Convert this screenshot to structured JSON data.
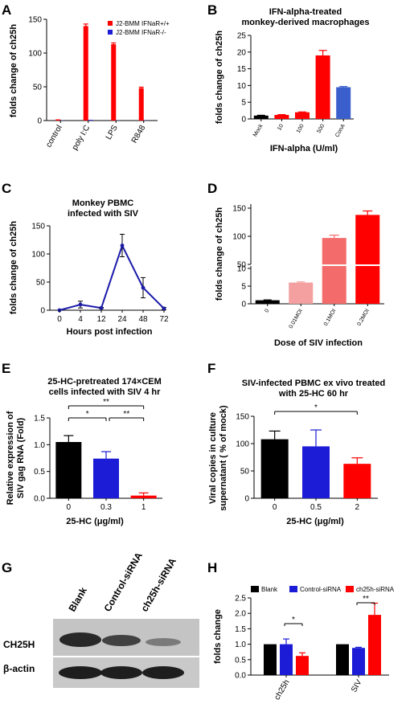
{
  "chart_data": [
    {
      "panel": "A",
      "type": "bar",
      "title": "",
      "ylabel": "folds change of ch25h",
      "xlabel": "",
      "ylim": [
        0,
        150
      ],
      "categories": [
        "control",
        "poly I:C",
        "LPS",
        "R848"
      ],
      "series": [
        {
          "name": "J2-BMM IFNaR+/+",
          "color": "#ff0000",
          "values": [
            0.5,
            140,
            113,
            48
          ],
          "errors": [
            0.5,
            3,
            2,
            1.5
          ]
        },
        {
          "name": "J2-BMM IFNaR-/-",
          "color": "#1c1cd6",
          "values": [
            0.3,
            1,
            0.3,
            0.3
          ],
          "errors": [
            0.2,
            0.3,
            0.2,
            0.2
          ]
        }
      ],
      "legend": "top-right"
    },
    {
      "panel": "B",
      "type": "bar",
      "title": "IFN-alpha-treated monkey-derived macrophages",
      "title_lines": [
        "IFN-alpha-treated",
        "monkey-derived macrophages"
      ],
      "ylabel": "folds change of ch25h",
      "xlabel": "IFN-alpha (U/ml)",
      "ylim": [
        0,
        25
      ],
      "yticks": [
        0,
        5,
        10,
        15,
        20,
        25
      ],
      "categories": [
        "Mock",
        "10",
        "100",
        "500",
        "ConA"
      ],
      "values": [
        1,
        1.2,
        2,
        19,
        9.5
      ],
      "errors": [
        0.1,
        0.1,
        0.1,
        1.5,
        0.2
      ],
      "colors": [
        "#000000",
        "#ff0000",
        "#ff0000",
        "#ff0000",
        "#3a5fcd"
      ]
    },
    {
      "panel": "C",
      "type": "line",
      "title": "Monkey PBMC infected with SIV",
      "title_lines": [
        "Monkey PBMC",
        "infected with SIV"
      ],
      "ylabel": "folds change of ch25h",
      "xlabel": "Hours post infection",
      "ylim": [
        0,
        150
      ],
      "yticks": [
        0,
        50,
        100,
        150
      ],
      "categories": [
        "0",
        "4",
        "12",
        "24",
        "48",
        "72"
      ],
      "values": [
        0,
        10,
        4,
        115,
        40,
        3
      ],
      "errors": [
        0.5,
        6,
        1,
        20,
        18,
        2
      ],
      "color": "#1c1caa"
    },
    {
      "panel": "D",
      "type": "bar",
      "title": "",
      "ylabel": "folds change of ch25h",
      "xlabel": "Dose of SIV infection",
      "y_break": true,
      "yticks_upper": [
        50,
        100,
        150
      ],
      "yticks_lower": [
        0,
        5,
        10
      ],
      "categories": [
        "0",
        "0.01MOI",
        "0.1MOI",
        "0.2MOI"
      ],
      "values": [
        1,
        6,
        97,
        138
      ],
      "errors": [
        0.1,
        0.2,
        5,
        7
      ],
      "colors": [
        "#000000",
        "#f4a0a0",
        "#f36b6b",
        "#ff0000"
      ]
    },
    {
      "panel": "E",
      "type": "bar",
      "title": "25-HC-pretreated 174×CEM cells infected with SIV 4 hr",
      "title_lines": [
        "25-HC-pretreated 174×CEM",
        "cells infected with SIV 4 hr"
      ],
      "ylabel": "Relative expression of SIV gag RNA (Fold)",
      "ylabel_lines": [
        "Relative expression of",
        "SIV gag RNA (Fold)"
      ],
      "xlabel": "25-HC (μg/ml)",
      "ylim": [
        0,
        1.5
      ],
      "yticks": [
        "0.0",
        "0.5",
        "1.0",
        "1.5"
      ],
      "categories": [
        "0",
        "0.3",
        "1"
      ],
      "values": [
        1.05,
        0.74,
        0.05
      ],
      "errors": [
        0.12,
        0.13,
        0.05
      ],
      "colors": [
        "#000000",
        "#1c1cd6",
        "#ff0000"
      ],
      "significance": [
        "*",
        "**",
        "**"
      ]
    },
    {
      "panel": "F",
      "type": "bar",
      "title": "SIV-infected PBMC ex vivo treated with 25-HC 60 hr",
      "title_lines": [
        "SIV-infected  PBMC ex vivo treated",
        "with 25-HC 60 hr"
      ],
      "ylabel": "Viral copies in culture supernatant ( % of mock)",
      "ylabel_lines": [
        "Viral copies in culture",
        "supernatant ( % of mock)"
      ],
      "xlabel": "25-HC (μg/ml)",
      "ylim": [
        0,
        150
      ],
      "yticks": [
        0,
        50,
        100,
        150
      ],
      "categories": [
        "0",
        "0.5",
        "2"
      ],
      "values": [
        108,
        95,
        63
      ],
      "errors": [
        15,
        30,
        11
      ],
      "colors": [
        "#000000",
        "#1c1cd6",
        "#ff0000"
      ],
      "significance": [
        "*"
      ]
    },
    {
      "panel": "H",
      "type": "bar",
      "title": "",
      "ylabel": "folds change",
      "xlabel": "",
      "ylim": [
        0,
        2.5
      ],
      "yticks": [
        "0.0",
        "0.5",
        "1.0",
        "1.5",
        "2.0",
        "2.5"
      ],
      "categories": [
        "ch25h",
        "SIV"
      ],
      "series": [
        {
          "name": "Blank",
          "color": "#000000",
          "values": [
            1.0,
            1.0
          ],
          "errors": [
            0,
            0
          ]
        },
        {
          "name": "Control-siRNA",
          "color": "#1c1cd6",
          "values": [
            1.0,
            0.88
          ],
          "errors": [
            0.17,
            0.02
          ]
        },
        {
          "name": "ch25h-siRNA",
          "color": "#ff0000",
          "values": [
            0.62,
            1.95
          ],
          "errors": [
            0.1,
            0.38
          ]
        }
      ],
      "legend": "top",
      "significance": [
        "*",
        "**"
      ]
    }
  ],
  "panel_labels": {
    "a": "A",
    "b": "B",
    "c": "C",
    "d": "D",
    "e": "E",
    "f": "F",
    "g": "G",
    "h": "H"
  },
  "blot": {
    "lanes": [
      "Blank",
      "Control-siRNA",
      "ch25h-siRNA"
    ],
    "rows": [
      "CH25H",
      "β-actin"
    ]
  }
}
